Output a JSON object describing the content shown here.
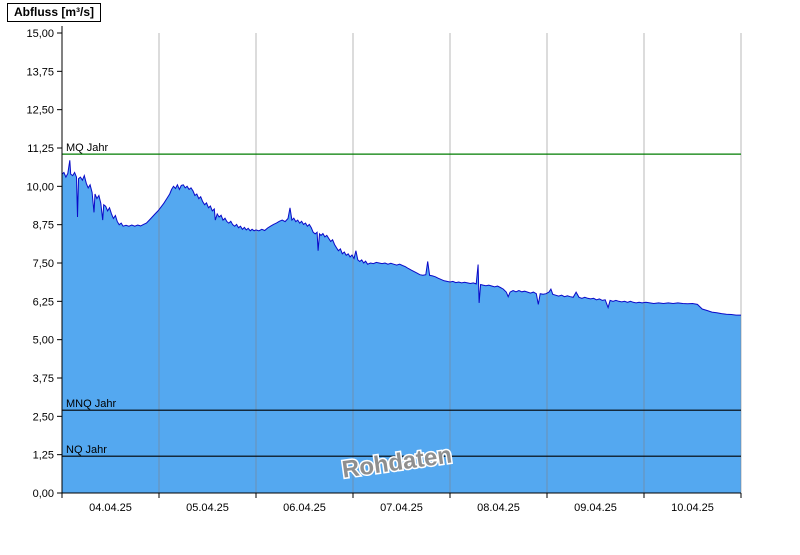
{
  "title": "Abfluss [m³/s]",
  "chart_data": {
    "type": "area",
    "title": "Abfluss [m³/s]",
    "ylabel": "Abfluss [m³/s]",
    "ylim": [
      0,
      15
    ],
    "ytick_values": [
      0,
      1.25,
      2.5,
      3.75,
      5,
      6.25,
      7.5,
      8.75,
      10,
      11.25,
      12.5,
      13.75,
      15
    ],
    "ytick_labels": [
      "0,00",
      "1,25",
      "2,50",
      "3,75",
      "5,00",
      "6,25",
      "7,50",
      "8,75",
      "10,00",
      "11,25",
      "12,50",
      "13,75",
      "15,00"
    ],
    "x_categories": [
      "04.04.25",
      "05.04.25",
      "06.04.25",
      "07.04.25",
      "08.04.25",
      "09.04.25",
      "10.04.25"
    ],
    "x_range_days": [
      0,
      7
    ],
    "grid": "vertical-day-lines",
    "legend": "none",
    "watermark": "Rohdaten",
    "colors": {
      "fill": "#54a8f0",
      "line": "#0a0ac8",
      "grid": "#808080",
      "axis": "#000000",
      "watermark": "#8f8f8f",
      "mq_line": "#007d00",
      "ref_line": "#000000"
    },
    "reference_lines": [
      {
        "id": "mq",
        "label": "MQ Jahr",
        "value": 11.05,
        "color": "#007d00"
      },
      {
        "id": "mnq",
        "label": "MNQ Jahr",
        "value": 2.7,
        "color": "#000000"
      },
      {
        "id": "nq",
        "label": "NQ Jahr",
        "value": 1.2,
        "color": "#000000"
      }
    ],
    "series": [
      {
        "name": "Abfluss Rohdaten",
        "points": [
          [
            0,
            10.4
          ],
          [
            0.02,
            10.45
          ],
          [
            0.04,
            10.3
          ],
          [
            0.06,
            10.42
          ],
          [
            0.08,
            10.85
          ],
          [
            0.09,
            10.4
          ],
          [
            0.11,
            10.35
          ],
          [
            0.13,
            10.45
          ],
          [
            0.15,
            10.3
          ],
          [
            0.16,
            9.0
          ],
          [
            0.17,
            10.25
          ],
          [
            0.19,
            10.3
          ],
          [
            0.21,
            10.2
          ],
          [
            0.23,
            10.35
          ],
          [
            0.25,
            10.1
          ],
          [
            0.27,
            9.95
          ],
          [
            0.29,
            10.05
          ],
          [
            0.31,
            9.8
          ],
          [
            0.33,
            9.15
          ],
          [
            0.34,
            9.75
          ],
          [
            0.36,
            9.6
          ],
          [
            0.38,
            9.7
          ],
          [
            0.4,
            9.45
          ],
          [
            0.42,
            8.9
          ],
          [
            0.43,
            9.4
          ],
          [
            0.45,
            9.35
          ],
          [
            0.47,
            9.2
          ],
          [
            0.49,
            9.3
          ],
          [
            0.51,
            9.1
          ],
          [
            0.53,
            8.95
          ],
          [
            0.55,
            9.05
          ],
          [
            0.57,
            8.85
          ],
          [
            0.59,
            8.75
          ],
          [
            0.61,
            8.8
          ],
          [
            0.63,
            8.7
          ],
          [
            0.66,
            8.73
          ],
          [
            0.69,
            8.7
          ],
          [
            0.72,
            8.74
          ],
          [
            0.75,
            8.7
          ],
          [
            0.78,
            8.74
          ],
          [
            0.81,
            8.71
          ],
          [
            0.84,
            8.76
          ],
          [
            0.87,
            8.8
          ],
          [
            0.9,
            8.9
          ],
          [
            0.93,
            9.0
          ],
          [
            0.96,
            9.1
          ],
          [
            0.99,
            9.2
          ],
          [
            1.02,
            9.32
          ],
          [
            1.05,
            9.45
          ],
          [
            1.08,
            9.6
          ],
          [
            1.11,
            9.75
          ],
          [
            1.13,
            9.9
          ],
          [
            1.15,
            10.0
          ],
          [
            1.17,
            9.93
          ],
          [
            1.19,
            10.05
          ],
          [
            1.21,
            9.9
          ],
          [
            1.23,
            10.03
          ],
          [
            1.25,
            10.05
          ],
          [
            1.27,
            9.95
          ],
          [
            1.29,
            10.0
          ],
          [
            1.31,
            9.9
          ],
          [
            1.33,
            9.95
          ],
          [
            1.35,
            9.85
          ],
          [
            1.37,
            9.7
          ],
          [
            1.39,
            9.75
          ],
          [
            1.41,
            9.6
          ],
          [
            1.43,
            9.66
          ],
          [
            1.45,
            9.5
          ],
          [
            1.47,
            9.4
          ],
          [
            1.49,
            9.46
          ],
          [
            1.51,
            9.3
          ],
          [
            1.53,
            9.36
          ],
          [
            1.55,
            9.2
          ],
          [
            1.57,
            9.26
          ],
          [
            1.58,
            8.9
          ],
          [
            1.6,
            9.1
          ],
          [
            1.62,
            9.0
          ],
          [
            1.64,
            9.06
          ],
          [
            1.66,
            8.9
          ],
          [
            1.68,
            8.96
          ],
          [
            1.7,
            8.85
          ],
          [
            1.72,
            8.8
          ],
          [
            1.74,
            8.86
          ],
          [
            1.76,
            8.75
          ],
          [
            1.78,
            8.7
          ],
          [
            1.8,
            8.76
          ],
          [
            1.82,
            8.65
          ],
          [
            1.84,
            8.7
          ],
          [
            1.86,
            8.6
          ],
          [
            1.88,
            8.66
          ],
          [
            1.9,
            8.58
          ],
          [
            1.92,
            8.63
          ],
          [
            1.94,
            8.55
          ],
          [
            1.96,
            8.6
          ],
          [
            1.98,
            8.55
          ],
          [
            2.0,
            8.58
          ],
          [
            2.03,
            8.55
          ],
          [
            2.06,
            8.6
          ],
          [
            2.09,
            8.56
          ],
          [
            2.12,
            8.64
          ],
          [
            2.15,
            8.7
          ],
          [
            2.18,
            8.76
          ],
          [
            2.21,
            8.8
          ],
          [
            2.24,
            8.86
          ],
          [
            2.27,
            8.9
          ],
          [
            2.3,
            8.85
          ],
          [
            2.33,
            8.95
          ],
          [
            2.35,
            9.3
          ],
          [
            2.37,
            8.9
          ],
          [
            2.39,
            8.96
          ],
          [
            2.41,
            8.85
          ],
          [
            2.43,
            8.9
          ],
          [
            2.45,
            8.8
          ],
          [
            2.47,
            8.86
          ],
          [
            2.49,
            8.76
          ],
          [
            2.51,
            8.8
          ],
          [
            2.53,
            8.7
          ],
          [
            2.55,
            8.76
          ],
          [
            2.57,
            8.65
          ],
          [
            2.59,
            8.5
          ],
          [
            2.61,
            8.45
          ],
          [
            2.63,
            8.5
          ],
          [
            2.64,
            7.9
          ],
          [
            2.655,
            8.45
          ],
          [
            2.67,
            8.4
          ],
          [
            2.69,
            8.46
          ],
          [
            2.71,
            8.35
          ],
          [
            2.73,
            8.4
          ],
          [
            2.75,
            8.3
          ],
          [
            2.77,
            8.2
          ],
          [
            2.79,
            8.26
          ],
          [
            2.81,
            8.1
          ],
          [
            2.83,
            8.0
          ],
          [
            2.85,
            7.9
          ],
          [
            2.87,
            7.96
          ],
          [
            2.89,
            7.8
          ],
          [
            2.91,
            7.86
          ],
          [
            2.93,
            7.75
          ],
          [
            2.95,
            7.8
          ],
          [
            2.97,
            7.7
          ],
          [
            2.99,
            7.76
          ],
          [
            3.01,
            7.65
          ],
          [
            3.03,
            7.9
          ],
          [
            3.05,
            7.6
          ],
          [
            3.07,
            7.55
          ],
          [
            3.09,
            7.6
          ],
          [
            3.11,
            7.5
          ],
          [
            3.13,
            7.56
          ],
          [
            3.15,
            7.46
          ],
          [
            3.18,
            7.5
          ],
          [
            3.21,
            7.48
          ],
          [
            3.24,
            7.52
          ],
          [
            3.27,
            7.5
          ],
          [
            3.3,
            7.48
          ],
          [
            3.33,
            7.5
          ],
          [
            3.36,
            7.46
          ],
          [
            3.39,
            7.49
          ],
          [
            3.42,
            7.46
          ],
          [
            3.45,
            7.43
          ],
          [
            3.48,
            7.46
          ],
          [
            3.51,
            7.42
          ],
          [
            3.54,
            7.38
          ],
          [
            3.57,
            7.32
          ],
          [
            3.6,
            7.27
          ],
          [
            3.63,
            7.22
          ],
          [
            3.66,
            7.17
          ],
          [
            3.69,
            7.12
          ],
          [
            3.72,
            7.1
          ],
          [
            3.75,
            7.12
          ],
          [
            3.77,
            7.55
          ],
          [
            3.79,
            7.1
          ],
          [
            3.82,
            7.08
          ],
          [
            3.85,
            7.05
          ],
          [
            3.88,
            7.0
          ],
          [
            3.91,
            6.96
          ],
          [
            3.94,
            6.92
          ],
          [
            3.97,
            6.9
          ],
          [
            4.0,
            6.88
          ],
          [
            4.03,
            6.9
          ],
          [
            4.06,
            6.86
          ],
          [
            4.09,
            6.88
          ],
          [
            4.12,
            6.85
          ],
          [
            4.15,
            6.87
          ],
          [
            4.18,
            6.85
          ],
          [
            4.21,
            6.83
          ],
          [
            4.24,
            6.85
          ],
          [
            4.27,
            6.82
          ],
          [
            4.29,
            7.45
          ],
          [
            4.3,
            6.2
          ],
          [
            4.315,
            6.8
          ],
          [
            4.34,
            6.78
          ],
          [
            4.37,
            6.76
          ],
          [
            4.4,
            6.78
          ],
          [
            4.43,
            6.75
          ],
          [
            4.46,
            6.72
          ],
          [
            4.49,
            6.75
          ],
          [
            4.52,
            6.7
          ],
          [
            4.55,
            6.65
          ],
          [
            4.58,
            6.55
          ],
          [
            4.6,
            6.4
          ],
          [
            4.62,
            6.55
          ],
          [
            4.65,
            6.6
          ],
          [
            4.68,
            6.56
          ],
          [
            4.71,
            6.6
          ],
          [
            4.74,
            6.56
          ],
          [
            4.77,
            6.58
          ],
          [
            4.8,
            6.55
          ],
          [
            4.83,
            6.52
          ],
          [
            4.86,
            6.55
          ],
          [
            4.89,
            6.5
          ],
          [
            4.91,
            6.15
          ],
          [
            4.93,
            6.5
          ],
          [
            4.96,
            6.48
          ],
          [
            4.99,
            6.5
          ],
          [
            5.02,
            6.55
          ],
          [
            5.04,
            6.65
          ],
          [
            5.06,
            6.48
          ],
          [
            5.09,
            6.45
          ],
          [
            5.12,
            6.42
          ],
          [
            5.15,
            6.45
          ],
          [
            5.18,
            6.4
          ],
          [
            5.21,
            6.43
          ],
          [
            5.24,
            6.4
          ],
          [
            5.27,
            6.38
          ],
          [
            5.3,
            6.55
          ],
          [
            5.33,
            6.38
          ],
          [
            5.36,
            6.35
          ],
          [
            5.39,
            6.38
          ],
          [
            5.42,
            6.35
          ],
          [
            5.45,
            6.33
          ],
          [
            5.48,
            6.35
          ],
          [
            5.51,
            6.3
          ],
          [
            5.54,
            6.33
          ],
          [
            5.57,
            6.28
          ],
          [
            5.6,
            6.3
          ],
          [
            5.63,
            6.05
          ],
          [
            5.65,
            6.28
          ],
          [
            5.68,
            6.25
          ],
          [
            5.71,
            6.28
          ],
          [
            5.74,
            6.25
          ],
          [
            5.77,
            6.23
          ],
          [
            5.8,
            6.25
          ],
          [
            5.83,
            6.22
          ],
          [
            5.86,
            6.25
          ],
          [
            5.89,
            6.22
          ],
          [
            5.92,
            6.2
          ],
          [
            5.95,
            6.22
          ],
          [
            5.98,
            6.2
          ],
          [
            6.02,
            6.22
          ],
          [
            6.06,
            6.2
          ],
          [
            6.1,
            6.18
          ],
          [
            6.15,
            6.2
          ],
          [
            6.2,
            6.18
          ],
          [
            6.25,
            6.2
          ],
          [
            6.3,
            6.18
          ],
          [
            6.35,
            6.2
          ],
          [
            6.4,
            6.18
          ],
          [
            6.45,
            6.17
          ],
          [
            6.5,
            6.18
          ],
          [
            6.55,
            6.15
          ],
          [
            6.6,
            6.0
          ],
          [
            6.65,
            5.95
          ],
          [
            6.7,
            5.9
          ],
          [
            6.75,
            5.88
          ],
          [
            6.8,
            5.85
          ],
          [
            6.85,
            5.83
          ],
          [
            6.9,
            5.82
          ],
          [
            6.95,
            5.8
          ],
          [
            7.0,
            5.8
          ]
        ]
      }
    ]
  }
}
